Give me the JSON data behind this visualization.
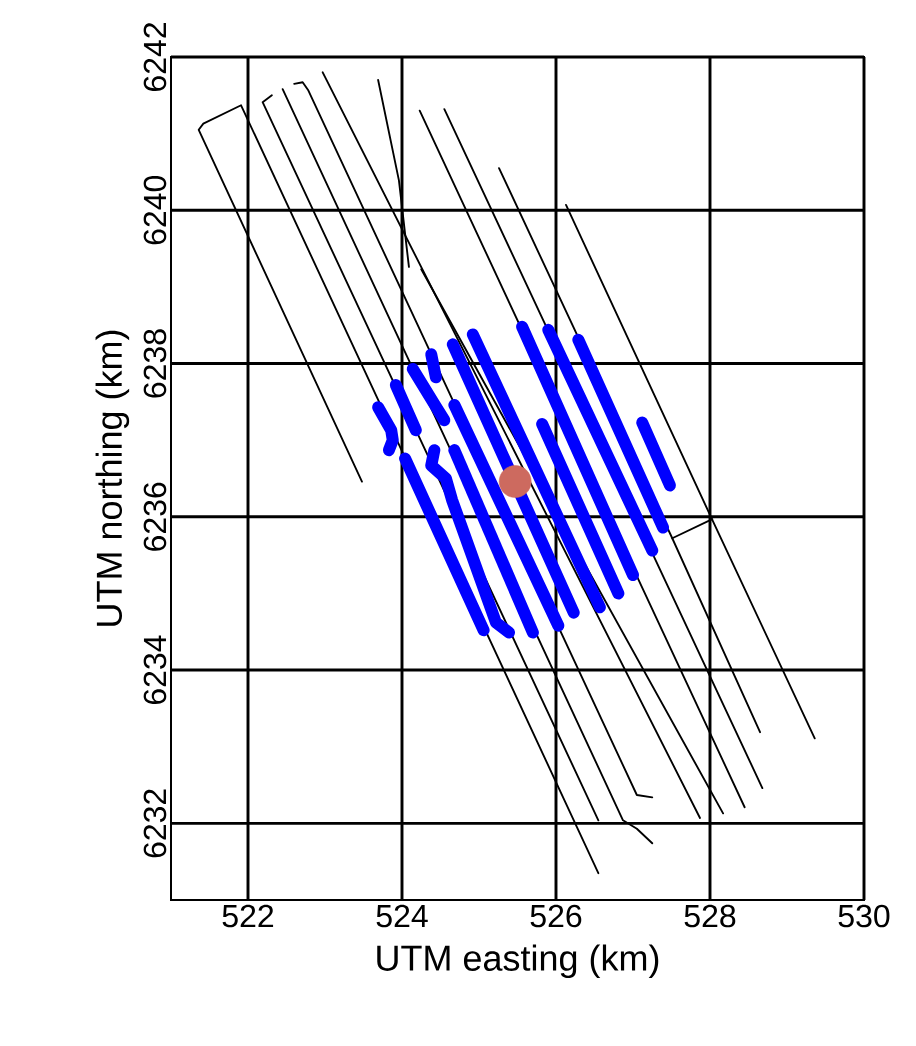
{
  "chart_data": {
    "type": "line",
    "xlabel": "UTM easting (km)",
    "ylabel": "UTM northing (km)",
    "xlim": [
      521,
      530
    ],
    "ylim": [
      6231,
      6242
    ],
    "xticks": [
      522,
      524,
      526,
      528,
      530
    ],
    "yticks": [
      6232,
      6234,
      6236,
      6238,
      6240,
      6242
    ],
    "grid": true,
    "series": [
      {
        "color": "#000000",
        "x": [
          523.48,
          521.36,
          521.42,
          521.91,
          526.55
        ],
        "values": [
          6236.46,
          6241.05,
          6241.13,
          6241.37,
          6231.35
        ]
      },
      {
        "color": "#000000",
        "x": [
          522.31,
          522.19,
          526.55
        ],
        "values": [
          6241.5,
          6241.41,
          6232.04
        ]
      },
      {
        "color": "#000000",
        "x": [
          522.45,
          526.87,
          527.05,
          527.25
        ],
        "values": [
          6241.58,
          6232.04,
          6231.93,
          6231.74
        ]
      },
      {
        "color": "#000000",
        "x": [
          522.6,
          522.71,
          522.78,
          527.05,
          527.25
        ],
        "values": [
          6241.65,
          6241.67,
          6241.57,
          6232.37,
          6232.34
        ]
      },
      {
        "color": "#000000",
        "x": [
          522.97,
          527.87
        ],
        "values": [
          6241.8,
          6232.07
        ]
      },
      {
        "color": "#000000",
        "x": [
          523.69,
          523.96,
          524.09
        ],
        "values": [
          6241.7,
          6240.39,
          6239.26
        ]
      },
      {
        "color": "#000000",
        "x": [
          524.25,
          528.17
        ],
        "values": [
          6239.23,
          6232.13
        ]
      },
      {
        "color": "#000000",
        "x": [
          524.23,
          528.45
        ],
        "values": [
          6241.3,
          6232.21
        ]
      },
      {
        "color": "#000000",
        "x": [
          524.55,
          528.68
        ],
        "values": [
          6241.32,
          6232.46
        ]
      },
      {
        "color": "#000000",
        "x": [
          525.26,
          527.51,
          528.65
        ],
        "values": [
          6240.55,
          6235.72,
          6233.19
        ]
      },
      {
        "color": "#000000",
        "x": [
          527.51,
          528.03
        ],
        "values": [
          6235.72,
          6235.97
        ]
      },
      {
        "color": "#000000",
        "x": [
          526.13,
          528.03,
          529.36
        ],
        "values": [
          6240.07,
          6235.96,
          6233.11
        ]
      },
      {
        "color": "#0000ff",
        "x": [
          523.69,
          523.86,
          523.88,
          523.83
        ],
        "values": [
          6237.43,
          6237.13,
          6237.0,
          6236.87
        ]
      },
      {
        "color": "#0000ff",
        "x": [
          523.92,
          524.18
        ],
        "values": [
          6237.72,
          6237.13
        ]
      },
      {
        "color": "#0000ff",
        "x": [
          524.38,
          524.44
        ],
        "values": [
          6238.12,
          6237.82
        ]
      },
      {
        "color": "#0000ff",
        "x": [
          524.14,
          524.42,
          524.55
        ],
        "values": [
          6237.93,
          6237.47,
          6237.26
        ]
      },
      {
        "color": "#0000ff",
        "x": [
          524.42,
          524.38,
          524.57,
          524.65,
          525.22,
          525.39
        ],
        "values": [
          6236.87,
          6236.67,
          6236.5,
          6236.22,
          6234.62,
          6234.49
        ]
      },
      {
        "color": "#0000ff",
        "x": [
          524.04,
          525.06
        ],
        "values": [
          6236.76,
          6234.52
        ]
      },
      {
        "color": "#0000ff",
        "x": [
          524.68,
          525.7
        ],
        "values": [
          6236.87,
          6234.49
        ]
      },
      {
        "color": "#0000ff",
        "x": [
          524.68,
          526.03
        ],
        "values": [
          6237.46,
          6234.58
        ]
      },
      {
        "color": "#0000ff",
        "x": [
          524.66,
          526.23
        ],
        "values": [
          6238.25,
          6234.75
        ]
      },
      {
        "color": "#0000ff",
        "x": [
          524.92,
          526.57
        ],
        "values": [
          6238.38,
          6234.82
        ]
      },
      {
        "color": "#0000ff",
        "x": [
          525.56,
          527.0
        ],
        "values": [
          6238.48,
          6235.24
        ]
      },
      {
        "color": "#0000ff",
        "x": [
          525.82,
          526.81
        ],
        "values": [
          6237.21,
          6235.0
        ]
      },
      {
        "color": "#0000ff",
        "x": [
          525.9,
          527.25
        ],
        "values": [
          6238.44,
          6235.56
        ]
      },
      {
        "color": "#0000ff",
        "x": [
          526.29,
          527.39
        ],
        "values": [
          6238.31,
          6235.86
        ]
      },
      {
        "color": "#0000ff",
        "x": [
          527.12,
          527.48
        ],
        "values": [
          6237.23,
          6236.41
        ]
      },
      {
        "type": "scatter",
        "color": "#cd6a5f",
        "x": [
          525.47
        ],
        "values": [
          6236.46
        ]
      }
    ]
  }
}
